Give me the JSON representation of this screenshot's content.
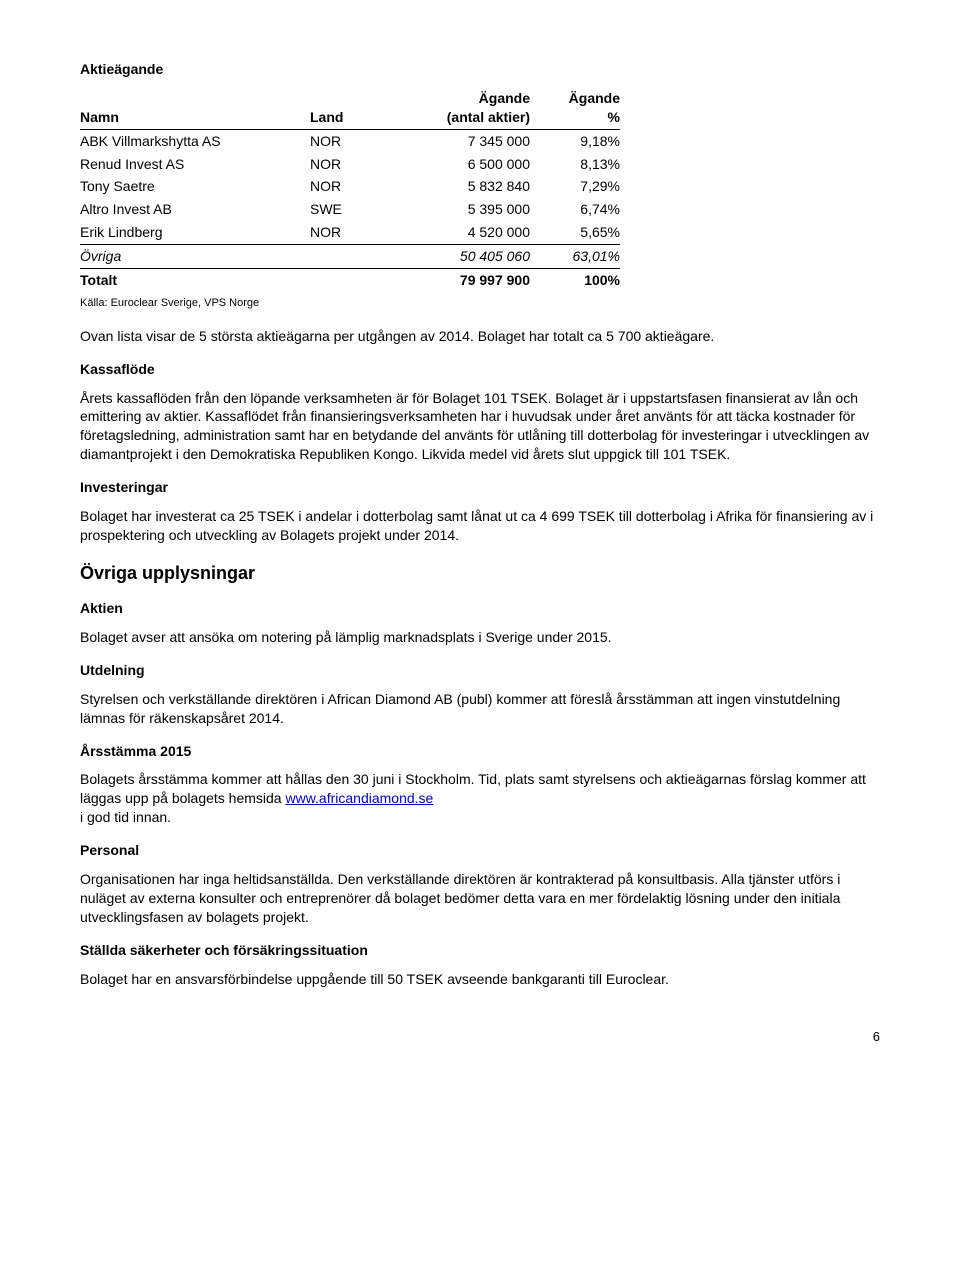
{
  "title_shareholding": "Aktieägande",
  "table": {
    "headers": {
      "name": "Namn",
      "land": "Land",
      "shares_l1": "Ägande",
      "shares_l2": "(antal aktier)",
      "pct_l1": "Ägande",
      "pct_l2": "%"
    },
    "rows": [
      {
        "name": "ABK Villmarkshytta AS",
        "land": "NOR",
        "shares": "7 345 000",
        "pct": "9,18%"
      },
      {
        "name": "Renud Invest AS",
        "land": "NOR",
        "shares": "6 500 000",
        "pct": "8,13%"
      },
      {
        "name": "Tony Saetre",
        "land": "NOR",
        "shares": "5 832 840",
        "pct": "7,29%"
      },
      {
        "name": "Altro Invest AB",
        "land": "SWE",
        "shares": "5 395 000",
        "pct": "6,74%"
      },
      {
        "name": "Erik Lindberg",
        "land": "NOR",
        "shares": "4 520 000",
        "pct": "5,65%"
      }
    ],
    "ovriga": {
      "name": "Övriga",
      "land": "",
      "shares": "50 405 060",
      "pct": "63,01%"
    },
    "totalt": {
      "name": "Totalt",
      "land": "",
      "shares": "79 997 900",
      "pct": "100%"
    }
  },
  "source": "Källa: Euroclear Sverige, VPS Norge",
  "intro_after_table": "Ovan lista visar de 5 största aktieägarna per utgången av 2014. Bolaget har totalt ca 5 700 aktieägare.",
  "kassaflode": {
    "title": "Kassaflöde",
    "text": "Årets kassaflöden från den löpande verksamheten är för Bolaget 101 TSEK. Bolaget är i uppstartsfasen finansierat av lån och emittering av aktier. Kassaflödet från finansieringsverksamheten har i huvudsak under året använts för att täcka kostnader för företagsledning, administration samt har en betydande del använts för utlåning till dotterbolag för investeringar i utvecklingen av diamantprojekt i den Demokratiska Republiken Kongo. Likvida medel vid årets slut uppgick till 101 TSEK."
  },
  "investeringar": {
    "title": "Investeringar",
    "text": "Bolaget har investerat ca 25 TSEK i andelar i dotterbolag samt lånat ut ca 4 699 TSEK till dotterbolag i Afrika för finansiering av i prospektering och utveckling av Bolagets projekt under 2014."
  },
  "ovriga_upplysningar": "Övriga upplysningar",
  "aktien": {
    "title": "Aktien",
    "text": "Bolaget avser att ansöka om notering på lämplig marknadsplats i Sverige under 2015."
  },
  "utdelning": {
    "title": "Utdelning",
    "text": "Styrelsen och verkställande direktören i African Diamond AB (publ) kommer att föreslå årsstämman att ingen vinstutdelning lämnas för räkenskapsåret 2014."
  },
  "arsstamma": {
    "title": "Årsstämma 2015",
    "text_before": "Bolagets årsstämma kommer att hållas den 30 juni i Stockholm. Tid, plats samt styrelsens och aktieägarnas förslag kommer att läggas upp på bolagets hemsida ",
    "link_text": "www.africandiamond.se",
    "text_after": " i god tid innan."
  },
  "personal": {
    "title": "Personal",
    "text": "Organisationen har inga heltidsanställda. Den verkställande direktören är kontrakterad på konsultbasis. Alla tjänster utförs i nuläget av externa konsulter och entreprenörer då bolaget bedömer detta vara en mer fördelaktig lösning under den initiala utvecklingsfasen av bolagets projekt."
  },
  "sakerheter": {
    "title": "Ställda säkerheter och försäkringssituation",
    "text": "Bolaget har en ansvarsförbindelse uppgående till 50 TSEK avseende bankgaranti till Euroclear."
  },
  "page_number": "6"
}
